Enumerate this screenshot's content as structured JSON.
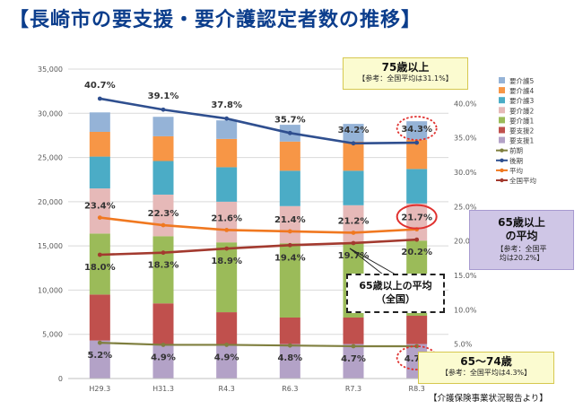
{
  "title": "【長崎市の要支援・要介護認定者数の推移】",
  "source_note": "【介護保険事業状況報告より】",
  "callouts": {
    "age75": {
      "title": "75歳以上",
      "note": "【参考：全国平均は31.1%】"
    },
    "age65": {
      "title_line1": "65歳以上",
      "title_line2": "の平均",
      "note_line1": "【参考：全国平",
      "note_line2": "均は20.2%】"
    },
    "age65_74": {
      "title": "65～74歳",
      "note": "【参考：全国平均は4.3%】"
    },
    "national": {
      "line1": "65歳以上の平均",
      "line2": "（全国）"
    }
  },
  "colors": {
    "care5": "#95b3d7",
    "care4": "#f79646",
    "care3": "#4bacc6",
    "care2": "#e6b9b8",
    "care1": "#9bbb59",
    "support2": "#c0504d",
    "support1": "#b3a2c7",
    "early": "#7f7f3f",
    "late": "#2f4f8f",
    "avg": "#f07820",
    "national": "#a33a2f",
    "highlight": "#e0312f",
    "title": "#0b3d8c"
  },
  "chart_data": {
    "type": "bar",
    "stacked": true,
    "categories": [
      "H29.3",
      "H31.3",
      "R4.3",
      "R6.3",
      "R7.3",
      "R8.3"
    ],
    "y_left": {
      "min": 0,
      "max": 35000,
      "ticks": [
        "0",
        "5,000",
        "10,000",
        "15,000",
        "20,000",
        "25,000",
        "30,000",
        "35,000"
      ]
    },
    "y_right": {
      "min": 0,
      "max": 45,
      "ticks": [
        "5.0%",
        "10.0%",
        "15.0%",
        "20.0%",
        "25.0%",
        "30.0%",
        "35.0%",
        "40.0%"
      ]
    },
    "legend_position": "right",
    "series": [
      {
        "name": "要支援1",
        "key": "support1",
        "values": [
          4300,
          3900,
          3900,
          3900,
          3900,
          3900
        ]
      },
      {
        "name": "要支援2",
        "key": "support2",
        "values": [
          5200,
          4600,
          3600,
          3000,
          3000,
          3200
        ]
      },
      {
        "name": "要介護1",
        "key": "care1",
        "values": [
          6900,
          7600,
          7900,
          8400,
          8500,
          8500
        ]
      },
      {
        "name": "要介護2",
        "key": "care2",
        "values": [
          5100,
          4700,
          4600,
          4200,
          4200,
          4200
        ]
      },
      {
        "name": "要介護3",
        "key": "care3",
        "values": [
          3600,
          3800,
          3900,
          4000,
          3900,
          3900
        ]
      },
      {
        "name": "要介護4",
        "key": "care4",
        "values": [
          2800,
          2800,
          3200,
          3300,
          3300,
          3300
        ]
      },
      {
        "name": "要介護5",
        "key": "care5",
        "values": [
          2200,
          2200,
          2100,
          1900,
          2000,
          2100
        ]
      }
    ],
    "lines": [
      {
        "name": "前期",
        "key": "early",
        "values": [
          5.2,
          4.9,
          4.9,
          4.8,
          4.7,
          4.7
        ],
        "labels": [
          "5.2%",
          "4.9%",
          "4.9%",
          "4.8%",
          "4.7%",
          "4.7%"
        ]
      },
      {
        "name": "後期",
        "key": "late",
        "values": [
          40.7,
          39.1,
          37.8,
          35.7,
          34.2,
          34.3
        ],
        "labels": [
          "40.7%",
          "39.1%",
          "37.8%",
          "35.7%",
          "34.2%",
          "34.3%"
        ]
      },
      {
        "name": "平均",
        "key": "avg",
        "values": [
          23.4,
          22.3,
          21.6,
          21.4,
          21.2,
          21.7
        ],
        "labels": [
          "23.4%",
          "22.3%",
          "21.6%",
          "21.4%",
          "21.2%",
          "21.7%"
        ]
      },
      {
        "name": "全国平均",
        "key": "national",
        "values": [
          18.0,
          18.3,
          18.9,
          19.4,
          19.7,
          20.2
        ],
        "labels": [
          "18.0%",
          "18.3%",
          "18.9%",
          "19.4%",
          "19.7%",
          "20.2%"
        ]
      }
    ],
    "legend_order": [
      "要介護5",
      "要介護4",
      "要介護3",
      "要介護2",
      "要介護1",
      "要支援2",
      "要支援1",
      "前期",
      "後期",
      "平均",
      "全国平均"
    ]
  }
}
